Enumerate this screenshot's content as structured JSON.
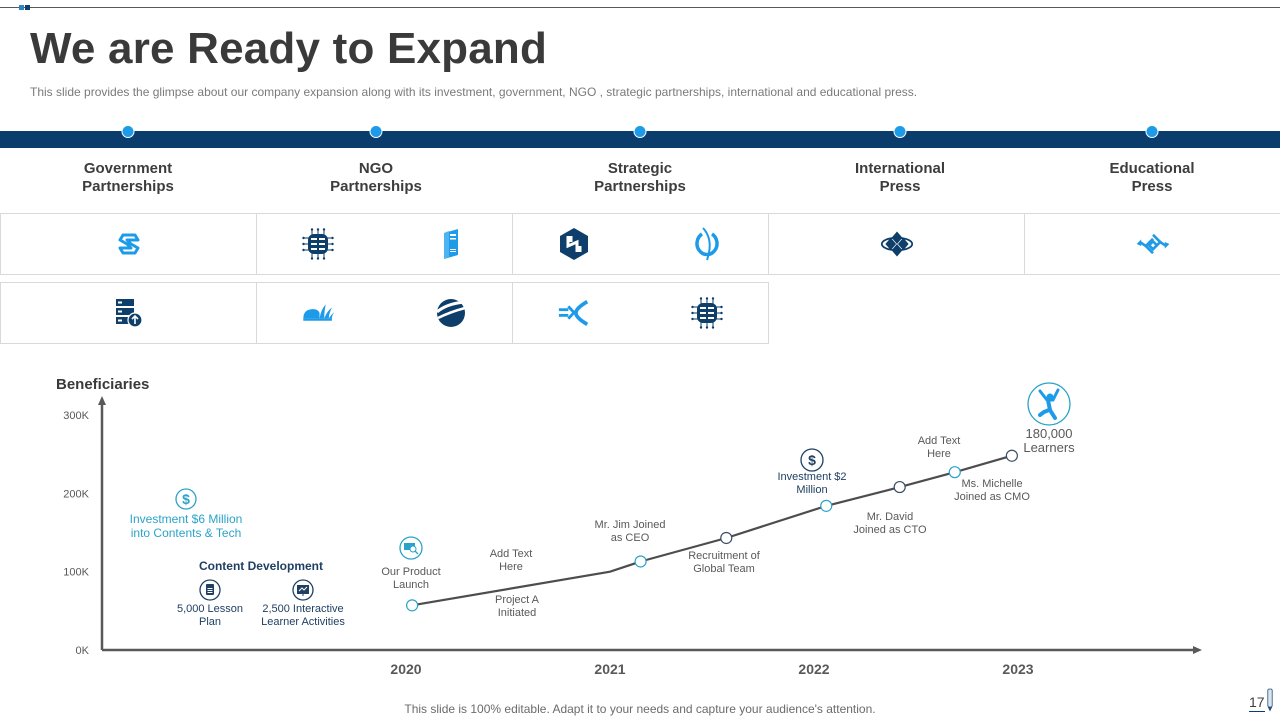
{
  "slide": {
    "title": "We are Ready to Expand",
    "subtitle": "This slide provides the glimpse about our company expansion along with its investment, government, NGO ,  strategic partnerships, international and educational press.",
    "footer": "This slide is 100% editable. Adapt it to your needs and capture your audience's attention.",
    "page_number": "17"
  },
  "colors": {
    "band": "#0a3d6b",
    "dot": "#1e9be8",
    "dark_icon": "#0e3f6b",
    "light_icon": "#1e9be8",
    "teal_text": "#2aa3c9",
    "navy_text": "#1f3f63"
  },
  "categories": [
    {
      "label_line1": "Government",
      "label_line2": "Partnerships",
      "row1_icons": [
        "s-hexagon-logo-icon"
      ],
      "row2_icons": [
        "server-upload-icon"
      ]
    },
    {
      "label_line1": "NGO",
      "label_line2": "Partnerships",
      "row1_icons": [
        "chip-grid-icon",
        "server-tower-icon"
      ],
      "row2_icons": [
        "book-cloud-icon",
        "globe-swirl-icon"
      ]
    },
    {
      "label_line1": "Strategic",
      "label_line2": "Partnerships",
      "row1_icons": [
        "hex-h-logo-icon",
        "phi-circle-icon"
      ],
      "row2_icons": [
        "merge-arrows-icon",
        "chip-grid-icon"
      ]
    },
    {
      "label_line1": "International",
      "label_line2": "Press",
      "row1_icons": [
        "diamond-cluster-icon"
      ],
      "row2_icons": []
    },
    {
      "label_line1": "Educational",
      "label_line2": "Press",
      "row1_icons": [
        "arrow-diamond-icon"
      ],
      "row2_icons": []
    }
  ],
  "chart_data": {
    "type": "line",
    "title": "Beneficiaries",
    "xlabel": "",
    "ylabel": "Beneficiaries",
    "y_ticks": [
      "0K",
      "100K",
      "200K",
      "300K"
    ],
    "ylim": [
      0,
      300000
    ],
    "x_ticks": [
      "2020",
      "2021",
      "2022",
      "2023"
    ],
    "xlim": [
      2019.0,
      2023.9
    ],
    "grid": false,
    "series": [
      {
        "name": "Beneficiaries",
        "points": [
          {
            "x": 2020.03,
            "y": 57000,
            "marker": true
          },
          {
            "x": 2021.0,
            "y": 100000,
            "marker": false
          },
          {
            "x": 2021.15,
            "y": 113000,
            "marker": true
          },
          {
            "x": 2021.57,
            "y": 143000,
            "marker": true
          },
          {
            "x": 2022.06,
            "y": 184000,
            "marker": true
          },
          {
            "x": 2022.42,
            "y": 208000,
            "marker": true
          },
          {
            "x": 2022.69,
            "y": 227000,
            "marker": true
          },
          {
            "x": 2022.97,
            "y": 248000,
            "marker": true
          }
        ]
      }
    ],
    "annotations": [
      {
        "id": "investment-6m",
        "lines": [
          "Investment $6 Million",
          "into Contents & Tech"
        ],
        "icon": "dollar-icon",
        "style": "teal"
      },
      {
        "id": "content-development",
        "lines": [
          "Content  Development"
        ],
        "style": "heading"
      },
      {
        "id": "lesson-plan",
        "lines": [
          "5,000 Lesson",
          "Plan"
        ],
        "icon": "document-icon",
        "style": "navy"
      },
      {
        "id": "learner-activities",
        "lines": [
          "2,500 Interactive",
          "Learner Activities"
        ],
        "icon": "presentation-icon",
        "style": "navy"
      },
      {
        "id": "product-launch",
        "lines": [
          "Our Product",
          "Launch"
        ],
        "icon": "search-screen-icon",
        "style": "gray"
      },
      {
        "id": "add-text-1",
        "lines": [
          "Add Text",
          "Here"
        ],
        "style": "gray"
      },
      {
        "id": "project-a",
        "lines": [
          "Project A",
          "Initiated"
        ],
        "style": "gray"
      },
      {
        "id": "jim-ceo",
        "lines": [
          "Mr. Jim Joined",
          "as CEO"
        ],
        "style": "gray"
      },
      {
        "id": "recruitment",
        "lines": [
          "Recruitment of",
          "Global Team"
        ],
        "style": "gray"
      },
      {
        "id": "investment-2m",
        "lines": [
          "Investment $2",
          "Million"
        ],
        "icon": "dollar-icon",
        "style": "navy"
      },
      {
        "id": "david-cto",
        "lines": [
          "Mr. David",
          "Joined as CTO"
        ],
        "style": "gray"
      },
      {
        "id": "add-text-2",
        "lines": [
          "Add Text",
          "Here"
        ],
        "style": "gray"
      },
      {
        "id": "michelle-cmo",
        "lines": [
          "Ms. Michelle",
          "Joined as CMO"
        ],
        "style": "gray"
      },
      {
        "id": "learners-180k",
        "lines": [
          "180,000",
          "Learners"
        ],
        "icon": "jumping-person-icon",
        "style": "gray-large"
      }
    ]
  }
}
